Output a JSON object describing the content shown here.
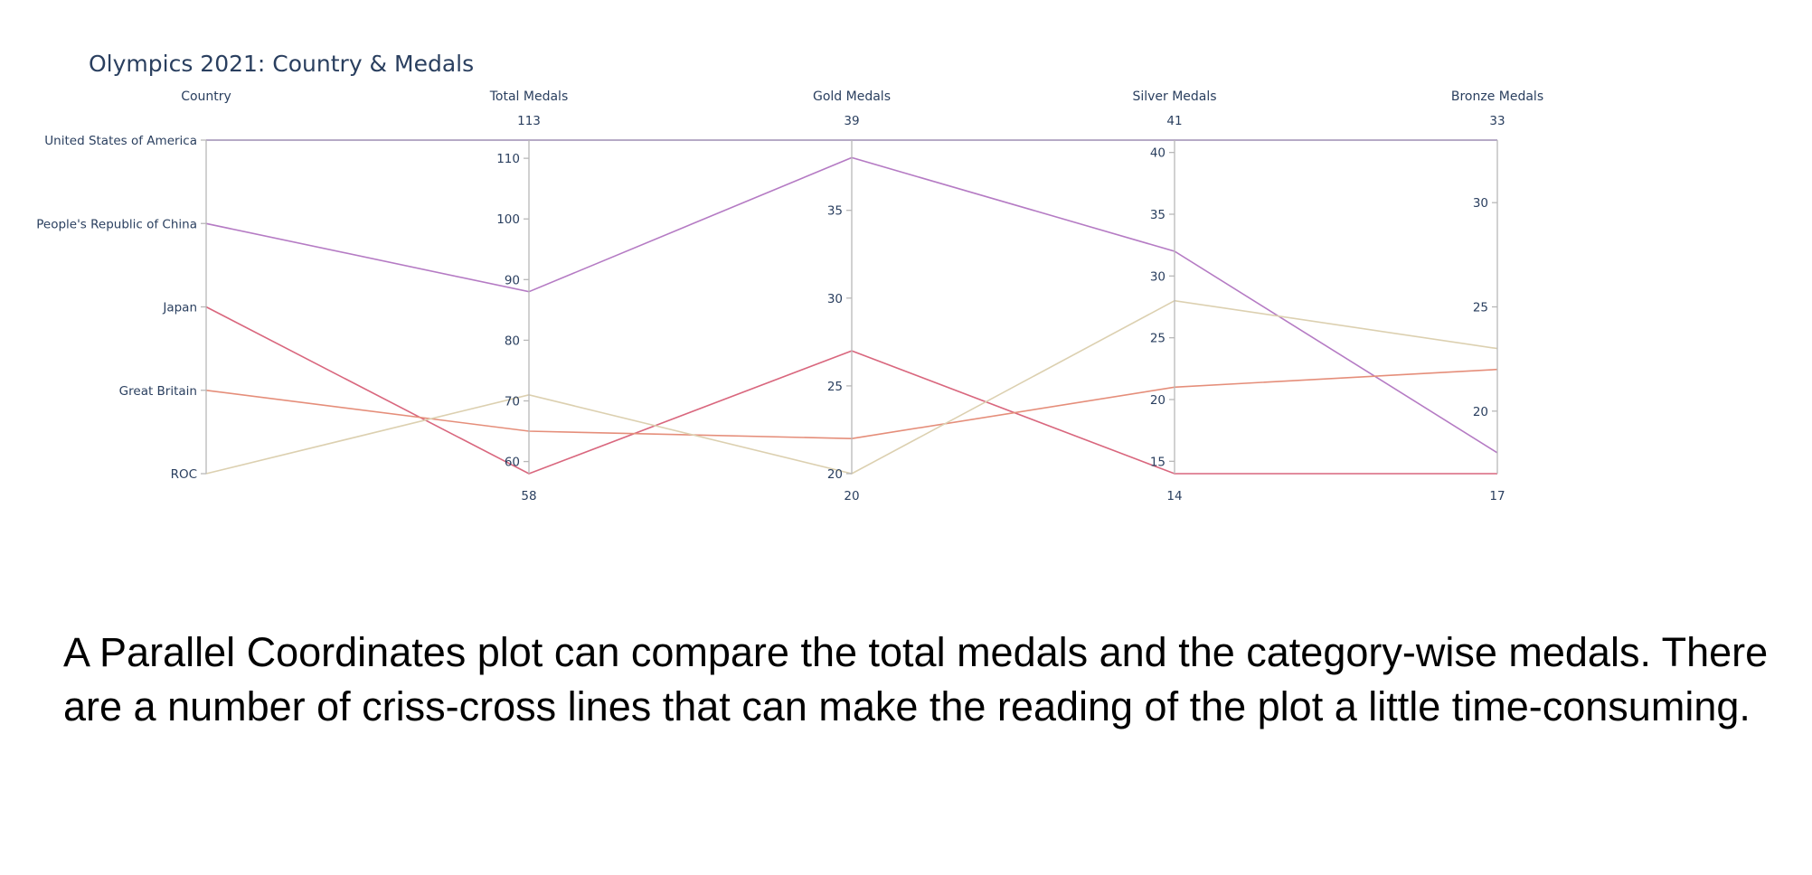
{
  "caption": "A Parallel Coordinates plot can compare the total medals and the category-wise medals. There are a number of criss-cross lines that can make the reading of the plot a little time-consuming.",
  "chart_data": {
    "type": "parallel_coordinates",
    "title": "Olympics 2021: Country & Medals",
    "dimensions": [
      {
        "label": "Country",
        "kind": "categorical",
        "categories": [
          "United States of America",
          "People's Republic of China",
          "Japan",
          "Great Britain",
          "ROC"
        ]
      },
      {
        "label": "Total Medals",
        "kind": "numeric",
        "range": [
          58,
          113
        ],
        "ticks": [
          60,
          70,
          80,
          90,
          100,
          110
        ]
      },
      {
        "label": "Gold Medals",
        "kind": "numeric",
        "range": [
          20,
          39
        ],
        "ticks": [
          20,
          25,
          30,
          35
        ]
      },
      {
        "label": "Silver Medals",
        "kind": "numeric",
        "range": [
          14,
          41
        ],
        "ticks": [
          15,
          20,
          25,
          30,
          35,
          40
        ]
      },
      {
        "label": "Bronze Medals",
        "kind": "numeric",
        "range": [
          17,
          33
        ],
        "ticks": [
          20,
          25,
          30
        ]
      }
    ],
    "records": [
      {
        "country": "United States of America",
        "values": [
          113,
          39,
          41,
          33
        ],
        "color": "#9e8db3"
      },
      {
        "country": "People's Republic of China",
        "values": [
          88,
          38,
          32,
          18
        ],
        "color": "#b57bc4"
      },
      {
        "country": "Japan",
        "values": [
          58,
          27,
          14,
          17
        ],
        "color": "#d9677e"
      },
      {
        "country": "Great Britain",
        "values": [
          65,
          22,
          21,
          22
        ],
        "color": "#e58e7a"
      },
      {
        "country": "ROC",
        "values": [
          71,
          20,
          28,
          23
        ],
        "color": "#dcd0b0"
      }
    ],
    "axis_color": "#b8b8b8",
    "text_color": "#2a3f5f"
  }
}
